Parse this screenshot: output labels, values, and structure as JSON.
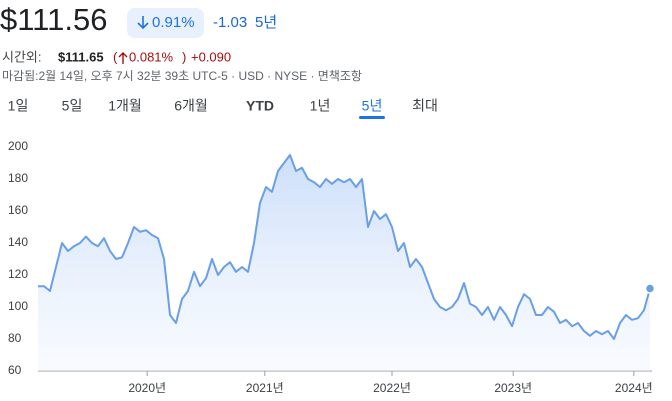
{
  "header": {
    "price": "$111.56",
    "change_pct": "0.91%",
    "change_abs": "-1.03",
    "change_period": "5년",
    "after_hours_label": "시간외:",
    "after_hours_price": "$111.65",
    "after_hours_pct": "0.081%",
    "after_hours_abs": "+0.090",
    "closed_note": "마감됨:2월 14일, 오후 7시 32분 39초 UTC-5 · USD · NYSE · 면책조항"
  },
  "tabs": {
    "items": [
      "1일",
      "5일",
      "1개월",
      "6개월",
      "YTD",
      "1년",
      "5년",
      "최대"
    ],
    "selected": 6
  },
  "chart_data": {
    "type": "line",
    "color": "#6a9fe6",
    "values": [
      113,
      113,
      110,
      125,
      140,
      135,
      138,
      140,
      144,
      140,
      138,
      143,
      135,
      130,
      131,
      140,
      150,
      147,
      148,
      145,
      143,
      130,
      95,
      90,
      105,
      110,
      122,
      113,
      118,
      130,
      120,
      125,
      128,
      122,
      125,
      122,
      140,
      165,
      175,
      172,
      185,
      190,
      195,
      185,
      187,
      180,
      178,
      175,
      180,
      177,
      180,
      178,
      180,
      175,
      180,
      150,
      160,
      155,
      158,
      150,
      135,
      140,
      125,
      130,
      125,
      115,
      105,
      100,
      98,
      100,
      105,
      115,
      102,
      100,
      95,
      100,
      92,
      100,
      95,
      88,
      100,
      108,
      105,
      95,
      95,
      100,
      97,
      90,
      92,
      88,
      90,
      85,
      82,
      85,
      83,
      85,
      80,
      90,
      95,
      92,
      93,
      98,
      111.56
    ],
    "xlim": [
      0,
      102
    ],
    "xticks": [
      {
        "value": 18.2,
        "label": "2020년"
      },
      {
        "value": 37.8,
        "label": "2021년"
      },
      {
        "value": 59,
        "label": "2022년"
      },
      {
        "value": 79.2,
        "label": "2023년"
      },
      {
        "value": 99.3,
        "label": "2024년"
      }
    ],
    "ylim": [
      60,
      200
    ],
    "yticks": [
      60,
      80,
      100,
      120,
      140,
      160,
      180,
      200
    ],
    "grid": false
  }
}
